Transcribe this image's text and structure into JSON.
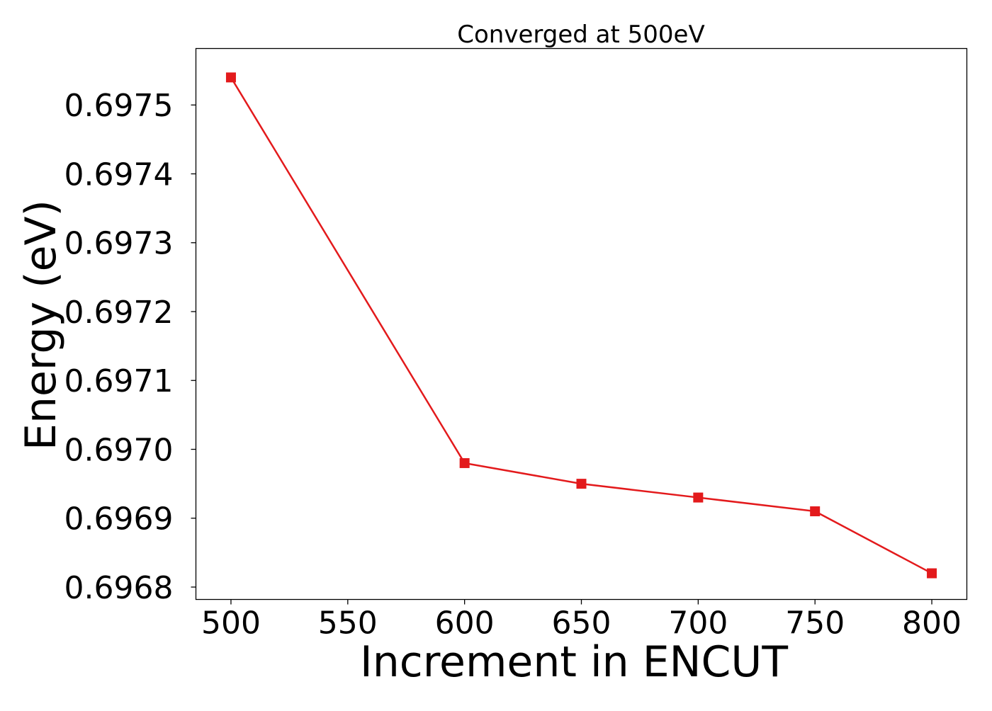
{
  "chart_data": {
    "type": "line",
    "title": "Converged at 500eV",
    "xlabel": "Increment in ENCUT",
    "ylabel": "Energy (eV)",
    "x": [
      500,
      600,
      650,
      700,
      750,
      800
    ],
    "y": [
      0.69754,
      0.69698,
      0.69695,
      0.69693,
      0.69691,
      0.69682
    ],
    "xlim": [
      485,
      815
    ],
    "ylim": [
      0.696782,
      0.697582
    ],
    "xticks": [
      500,
      550,
      600,
      650,
      700,
      750,
      800
    ],
    "xtick_labels": [
      "500",
      "550",
      "600",
      "650",
      "700",
      "750",
      "800"
    ],
    "yticks": [
      0.6968,
      0.6969,
      0.697,
      0.6971,
      0.6972,
      0.6973,
      0.6974,
      0.6975
    ],
    "ytick_labels": [
      "0.6968",
      "0.6969",
      "0.6970",
      "0.6971",
      "0.6972",
      "0.6973",
      "0.6974",
      "0.6975"
    ],
    "grid": false,
    "marker": "square",
    "series_color": "#e31a1c"
  }
}
